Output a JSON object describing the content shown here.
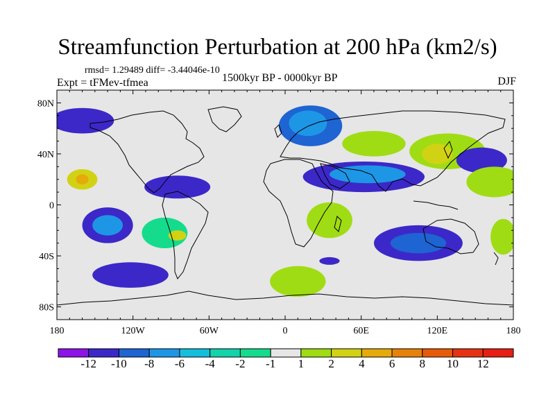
{
  "title": "Streamfunction Perturbation at 200 hPa (km2/s)",
  "stats": "rmsd= 1.29489 diff= -3.44046e-10",
  "experiment": "Expt = tFMev-tfmea",
  "period": "1500kyr BP - 0000kyr BP",
  "season": "DJF",
  "map": {
    "lon_range": [
      -180,
      180
    ],
    "lat_range": [
      -90,
      90
    ],
    "lon_ticks": [
      "180",
      "120W",
      "60W",
      "0",
      "60E",
      "120E",
      "180"
    ],
    "lat_ticks": [
      "80N",
      "40N",
      "0",
      "40S",
      "80S"
    ],
    "background_color": "#e6e6e6"
  },
  "colorbar": {
    "labels": [
      "-12",
      "-10",
      "-8",
      "-6",
      "-4",
      "-2",
      "-1",
      "1",
      "2",
      "4",
      "6",
      "8",
      "10",
      "12"
    ],
    "colors": [
      "#8c14e6",
      "#3c28c8",
      "#1e64d2",
      "#1e96e6",
      "#14bedc",
      "#14d2aa",
      "#14dc8c",
      "#e6e6e6",
      "#a0dc14",
      "#d2d214",
      "#e6aa0a",
      "#e6820a",
      "#e65a0a",
      "#e63214",
      "#e61e14"
    ]
  },
  "chart_data": {
    "type": "filled-contour-map",
    "variable": "streamfunction perturbation at 200 hPa",
    "units": "km2/s",
    "levels": [
      -12,
      -10,
      -8,
      -6,
      -4,
      -2,
      -1,
      1,
      2,
      4,
      6,
      8,
      10,
      12
    ],
    "anomalies": [
      {
        "name": "north-atlantic-europe-low",
        "lon": 20,
        "lat": 62,
        "lon_radius": 25,
        "lat_radius": 16,
        "level": 2
      },
      {
        "name": "north-atlantic-europe-low-core",
        "lon": 18,
        "lat": 64,
        "lon_radius": 15,
        "lat_radius": 10,
        "level": 3
      },
      {
        "name": "north-pacific-arctic-low",
        "lon": -160,
        "lat": 66,
        "lon_radius": 25,
        "lat_radius": 10,
        "level": 1
      },
      {
        "name": "north-pacific-high",
        "lon": -158,
        "lat": 20,
        "lon_radius": 20,
        "lat_radius": 14,
        "level": 7
      },
      {
        "name": "north-pacific-high-core",
        "lon": -160,
        "lat": 20,
        "lon_radius": 12,
        "lat_radius": 8,
        "level": 9
      },
      {
        "name": "north-pacific-high-center",
        "lon": -160,
        "lat": 20,
        "lon_radius": 5,
        "lat_radius": 4,
        "level": 10
      },
      {
        "name": "south-pacific-low",
        "lon": -140,
        "lat": -16,
        "lon_radius": 20,
        "lat_radius": 14,
        "level": 1
      },
      {
        "name": "south-pacific-low-core",
        "lon": -140,
        "lat": -16,
        "lon_radius": 12,
        "lat_radius": 8,
        "level": 3
      },
      {
        "name": "caribbean-low",
        "lon": -85,
        "lat": 14,
        "lon_radius": 26,
        "lat_radius": 9,
        "level": 1
      },
      {
        "name": "south-american-high",
        "lon": -95,
        "lat": -22,
        "lon_radius": 18,
        "lat_radius": 12,
        "level": 6
      },
      {
        "name": "south-american-high-core",
        "lon": -85,
        "lat": -24,
        "lon_radius": 7,
        "lat_radius": 4,
        "level": 9
      },
      {
        "name": "south-atlantic-low",
        "lon": -122,
        "lat": -55,
        "lon_radius": 30,
        "lat_radius": 10,
        "level": 1
      },
      {
        "name": "eurasian-low",
        "lon": 62,
        "lat": 22,
        "lon_radius": 48,
        "lat_radius": 12,
        "level": 1
      },
      {
        "name": "eurasian-low-core",
        "lon": 65,
        "lat": 24,
        "lon_radius": 30,
        "lat_radius": 7,
        "level": 3
      },
      {
        "name": "central-asian-high",
        "lon": 70,
        "lat": 48,
        "lon_radius": 25,
        "lat_radius": 10,
        "level": 8
      },
      {
        "name": "east-asian-high",
        "lon": 128,
        "lat": 42,
        "lon_radius": 30,
        "lat_radius": 14,
        "level": 8
      },
      {
        "name": "east-asian-high-core",
        "lon": 120,
        "lat": 40,
        "lon_radius": 12,
        "lat_radius": 8,
        "level": 9
      },
      {
        "name": "west-pacific-low",
        "lon": 155,
        "lat": 35,
        "lon_radius": 20,
        "lat_radius": 10,
        "level": 1
      },
      {
        "name": "west-pacific-high",
        "lon": 165,
        "lat": 18,
        "lon_radius": 22,
        "lat_radius": 12,
        "level": 8
      },
      {
        "name": "african-high",
        "lon": 35,
        "lat": -12,
        "lon_radius": 18,
        "lat_radius": 14,
        "level": 8
      },
      {
        "name": "indian-ocean-low",
        "lon": 105,
        "lat": -30,
        "lon_radius": 35,
        "lat_radius": 14,
        "level": 1
      },
      {
        "name": "indian-ocean-low-core",
        "lon": 105,
        "lat": -30,
        "lon_radius": 22,
        "lat_radius": 8,
        "level": 2
      },
      {
        "name": "southern-ocean-high",
        "lon": 10,
        "lat": -60,
        "lon_radius": 22,
        "lat_radius": 12,
        "level": 8
      },
      {
        "name": "south-indian-low",
        "lon": 35,
        "lat": -44,
        "lon_radius": 8,
        "lat_radius": 3,
        "level": 1
      },
      {
        "name": "south-pacific-high",
        "lon": 172,
        "lat": -25,
        "lon_radius": 10,
        "lat_radius": 14,
        "level": 8
      }
    ]
  }
}
